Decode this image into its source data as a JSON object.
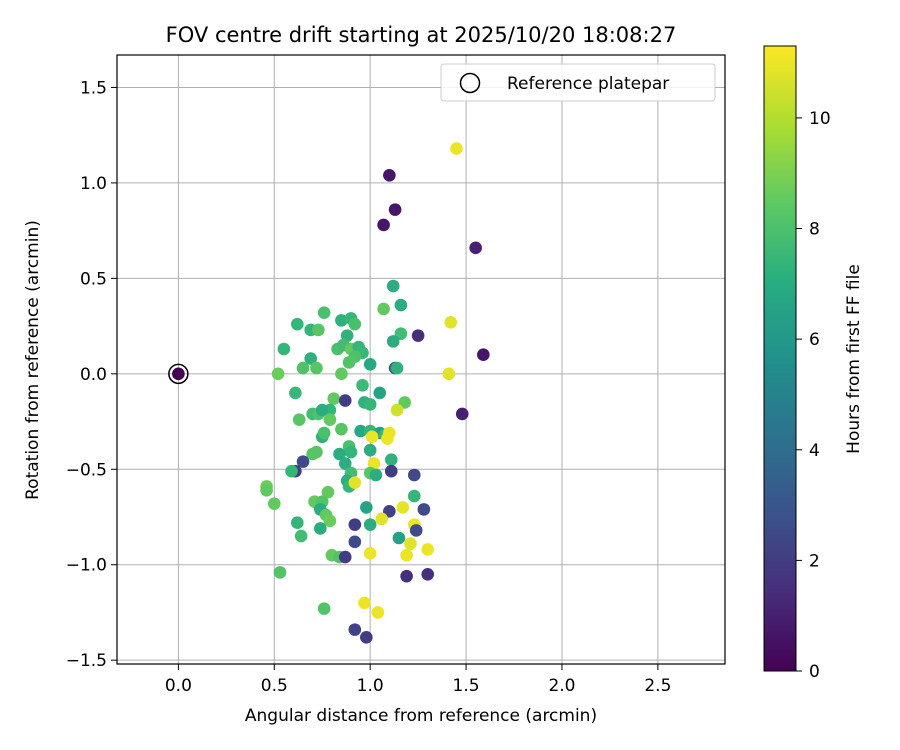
{
  "chart_data": {
    "type": "scatter",
    "title": "FOV centre drift starting at 2025/10/20 18:08:27",
    "xlabel": "Angular distance from reference (arcmin)",
    "ylabel": "Rotation from reference (arcmin)",
    "xlim": [
      -0.32,
      2.85
    ],
    "ylim": [
      -1.52,
      1.67
    ],
    "xticks": [
      0.0,
      0.5,
      1.0,
      1.5,
      2.0,
      2.5
    ],
    "xtick_labels": [
      "0.0",
      "0.5",
      "1.0",
      "1.5",
      "2.0",
      "2.5"
    ],
    "yticks": [
      -1.5,
      -1.0,
      -0.5,
      0.0,
      0.5,
      1.0,
      1.5
    ],
    "ytick_labels": [
      "−1.5",
      "−1.0",
      "−0.5",
      "0.0",
      "0.5",
      "1.0",
      "1.5"
    ],
    "grid": true,
    "legend": {
      "position": "top-right",
      "entries": [
        "Reference platepar"
      ]
    },
    "reference_point": {
      "x": 0.0,
      "y": 0.0,
      "hours": 0.0
    },
    "colorbar": {
      "label": "Hours from first FF file",
      "range": [
        0,
        11.3
      ],
      "ticks": [
        0,
        2,
        4,
        6,
        8,
        10
      ],
      "tick_labels": [
        "0",
        "2",
        "4",
        "6",
        "8",
        "10"
      ],
      "colormap": "viridis"
    },
    "points": [
      {
        "x": 1.45,
        "y": 1.18,
        "h": 11.0
      },
      {
        "x": 1.1,
        "y": 1.04,
        "h": 0.7
      },
      {
        "x": 1.13,
        "y": 0.86,
        "h": 0.7
      },
      {
        "x": 1.07,
        "y": 0.78,
        "h": 0.7
      },
      {
        "x": 1.55,
        "y": 0.66,
        "h": 1.0
      },
      {
        "x": 1.12,
        "y": 0.46,
        "h": 7.0
      },
      {
        "x": 1.16,
        "y": 0.36,
        "h": 7.0
      },
      {
        "x": 1.07,
        "y": 0.34,
        "h": 8.5
      },
      {
        "x": 0.76,
        "y": 0.32,
        "h": 8.0
      },
      {
        "x": 0.85,
        "y": 0.28,
        "h": 7.2
      },
      {
        "x": 0.9,
        "y": 0.29,
        "h": 7.5
      },
      {
        "x": 0.92,
        "y": 0.26,
        "h": 8.0
      },
      {
        "x": 0.62,
        "y": 0.26,
        "h": 7.5
      },
      {
        "x": 0.69,
        "y": 0.23,
        "h": 7.5
      },
      {
        "x": 0.73,
        "y": 0.23,
        "h": 8.3
      },
      {
        "x": 1.42,
        "y": 0.27,
        "h": 10.8
      },
      {
        "x": 0.88,
        "y": 0.2,
        "h": 7.3
      },
      {
        "x": 1.16,
        "y": 0.21,
        "h": 7.8
      },
      {
        "x": 1.25,
        "y": 0.2,
        "h": 1.5
      },
      {
        "x": 1.12,
        "y": 0.17,
        "h": 7.0
      },
      {
        "x": 0.55,
        "y": 0.13,
        "h": 7.5
      },
      {
        "x": 0.83,
        "y": 0.13,
        "h": 8.0
      },
      {
        "x": 0.86,
        "y": 0.15,
        "h": 7.8
      },
      {
        "x": 0.9,
        "y": 0.13,
        "h": 8.5
      },
      {
        "x": 0.94,
        "y": 0.14,
        "h": 7.5
      },
      {
        "x": 1.59,
        "y": 0.1,
        "h": 0.7
      },
      {
        "x": 0.96,
        "y": 0.11,
        "h": 7.6
      },
      {
        "x": 0.69,
        "y": 0.08,
        "h": 7.2
      },
      {
        "x": 0.92,
        "y": 0.09,
        "h": 8.1
      },
      {
        "x": 0.89,
        "y": 0.06,
        "h": 8.2
      },
      {
        "x": 1.0,
        "y": 0.05,
        "h": 6.8
      },
      {
        "x": 0.65,
        "y": 0.03,
        "h": 8.1
      },
      {
        "x": 0.72,
        "y": 0.03,
        "h": 8.3
      },
      {
        "x": 1.13,
        "y": 0.03,
        "h": 3.0
      },
      {
        "x": 1.14,
        "y": 0.03,
        "h": 7.2
      },
      {
        "x": 0.52,
        "y": 0.0,
        "h": 8.7
      },
      {
        "x": 0.85,
        "y": 0.0,
        "h": 8.5
      },
      {
        "x": 1.41,
        "y": 0.0,
        "h": 10.8
      },
      {
        "x": 0.96,
        "y": -0.06,
        "h": 7.7
      },
      {
        "x": 0.61,
        "y": -0.1,
        "h": 7.6
      },
      {
        "x": 1.05,
        "y": -0.1,
        "h": 6.6
      },
      {
        "x": 0.81,
        "y": -0.13,
        "h": 8.5
      },
      {
        "x": 0.87,
        "y": -0.14,
        "h": 2.0
      },
      {
        "x": 0.97,
        "y": -0.15,
        "h": 7.2
      },
      {
        "x": 1.0,
        "y": -0.16,
        "h": 7.5
      },
      {
        "x": 1.18,
        "y": -0.15,
        "h": 8.5
      },
      {
        "x": 1.14,
        "y": -0.19,
        "h": 10.5
      },
      {
        "x": 0.79,
        "y": -0.19,
        "h": 7.5
      },
      {
        "x": 0.7,
        "y": -0.21,
        "h": 7.8
      },
      {
        "x": 0.73,
        "y": -0.21,
        "h": 8.1
      },
      {
        "x": 0.75,
        "y": -0.19,
        "h": 7.0
      },
      {
        "x": 1.48,
        "y": -0.21,
        "h": 1.0
      },
      {
        "x": 0.63,
        "y": -0.24,
        "h": 8.3
      },
      {
        "x": 0.79,
        "y": -0.24,
        "h": 8.5
      },
      {
        "x": 0.85,
        "y": -0.29,
        "h": 8.3
      },
      {
        "x": 0.95,
        "y": -0.3,
        "h": 6.8
      },
      {
        "x": 1.0,
        "y": -0.3,
        "h": 7.5
      },
      {
        "x": 1.05,
        "y": -0.31,
        "h": 6.5
      },
      {
        "x": 1.08,
        "y": -0.32,
        "h": 7.7
      },
      {
        "x": 1.1,
        "y": -0.31,
        "h": 11.0
      },
      {
        "x": 1.01,
        "y": -0.33,
        "h": 11.0
      },
      {
        "x": 1.09,
        "y": -0.34,
        "h": 11.0
      },
      {
        "x": 0.75,
        "y": -0.33,
        "h": 7.2
      },
      {
        "x": 0.76,
        "y": -0.31,
        "h": 8.0
      },
      {
        "x": 0.89,
        "y": -0.38,
        "h": 8.0
      },
      {
        "x": 0.9,
        "y": -0.41,
        "h": 7.5
      },
      {
        "x": 0.7,
        "y": -0.42,
        "h": 8.3
      },
      {
        "x": 0.72,
        "y": -0.41,
        "h": 8.3
      },
      {
        "x": 0.84,
        "y": -0.42,
        "h": 7.0
      },
      {
        "x": 1.0,
        "y": -0.4,
        "h": 7.0
      },
      {
        "x": 1.11,
        "y": -0.45,
        "h": 7.3
      },
      {
        "x": 0.65,
        "y": -0.46,
        "h": 2.5
      },
      {
        "x": 0.87,
        "y": -0.47,
        "h": 7.0
      },
      {
        "x": 1.02,
        "y": -0.47,
        "h": 11.0
      },
      {
        "x": 0.61,
        "y": -0.51,
        "h": 2.0
      },
      {
        "x": 0.59,
        "y": -0.51,
        "h": 7.5
      },
      {
        "x": 0.9,
        "y": -0.52,
        "h": 7.8
      },
      {
        "x": 1.0,
        "y": -0.52,
        "h": 8.3
      },
      {
        "x": 1.03,
        "y": -0.53,
        "h": 7.0
      },
      {
        "x": 1.11,
        "y": -0.51,
        "h": 2.0
      },
      {
        "x": 1.23,
        "y": -0.53,
        "h": 2.5
      },
      {
        "x": 0.88,
        "y": -0.56,
        "h": 7.0
      },
      {
        "x": 0.89,
        "y": -0.59,
        "h": 7.5
      },
      {
        "x": 0.92,
        "y": -0.57,
        "h": 10.8
      },
      {
        "x": 0.46,
        "y": -0.59,
        "h": 8.7
      },
      {
        "x": 0.46,
        "y": -0.61,
        "h": 8.5
      },
      {
        "x": 0.78,
        "y": -0.62,
        "h": 8.5
      },
      {
        "x": 0.71,
        "y": -0.67,
        "h": 8.5
      },
      {
        "x": 0.75,
        "y": -0.67,
        "h": 8.2
      },
      {
        "x": 1.23,
        "y": -0.64,
        "h": 7.5
      },
      {
        "x": 0.5,
        "y": -0.68,
        "h": 8.5
      },
      {
        "x": 0.98,
        "y": -0.7,
        "h": 6.6
      },
      {
        "x": 1.17,
        "y": -0.7,
        "h": 10.9
      },
      {
        "x": 1.28,
        "y": -0.71,
        "h": 2.5
      },
      {
        "x": 1.1,
        "y": -0.72,
        "h": 2.2
      },
      {
        "x": 0.74,
        "y": -0.71,
        "h": 7.0
      },
      {
        "x": 0.77,
        "y": -0.74,
        "h": 8.5
      },
      {
        "x": 0.79,
        "y": -0.77,
        "h": 8.7
      },
      {
        "x": 1.06,
        "y": -0.76,
        "h": 10.8
      },
      {
        "x": 0.92,
        "y": -0.79,
        "h": 2.0
      },
      {
        "x": 0.62,
        "y": -0.78,
        "h": 7.5
      },
      {
        "x": 1.0,
        "y": -0.79,
        "h": 7.0
      },
      {
        "x": 1.23,
        "y": -0.79,
        "h": 11.0
      },
      {
        "x": 0.74,
        "y": -0.81,
        "h": 7.0
      },
      {
        "x": 1.24,
        "y": -0.82,
        "h": 2.5
      },
      {
        "x": 0.64,
        "y": -0.85,
        "h": 7.8
      },
      {
        "x": 1.15,
        "y": -0.86,
        "h": 6.5
      },
      {
        "x": 0.92,
        "y": -0.88,
        "h": 2.5
      },
      {
        "x": 1.21,
        "y": -0.89,
        "h": 10.8
      },
      {
        "x": 1.0,
        "y": -0.94,
        "h": 11.0
      },
      {
        "x": 1.3,
        "y": -0.92,
        "h": 11.0
      },
      {
        "x": 1.19,
        "y": -0.95,
        "h": 11.0
      },
      {
        "x": 0.8,
        "y": -0.95,
        "h": 8.5
      },
      {
        "x": 0.84,
        "y": -0.96,
        "h": 8.2
      },
      {
        "x": 0.87,
        "y": -0.96,
        "h": 2.0
      },
      {
        "x": 0.53,
        "y": -1.04,
        "h": 8.2
      },
      {
        "x": 1.19,
        "y": -1.06,
        "h": 1.5
      },
      {
        "x": 1.3,
        "y": -1.05,
        "h": 1.5
      },
      {
        "x": 0.97,
        "y": -1.2,
        "h": 11.0
      },
      {
        "x": 0.76,
        "y": -1.23,
        "h": 8.2
      },
      {
        "x": 1.04,
        "y": -1.25,
        "h": 11.0
      },
      {
        "x": 0.92,
        "y": -1.34,
        "h": 2.3
      },
      {
        "x": 0.98,
        "y": -1.38,
        "h": 2.0
      }
    ]
  }
}
